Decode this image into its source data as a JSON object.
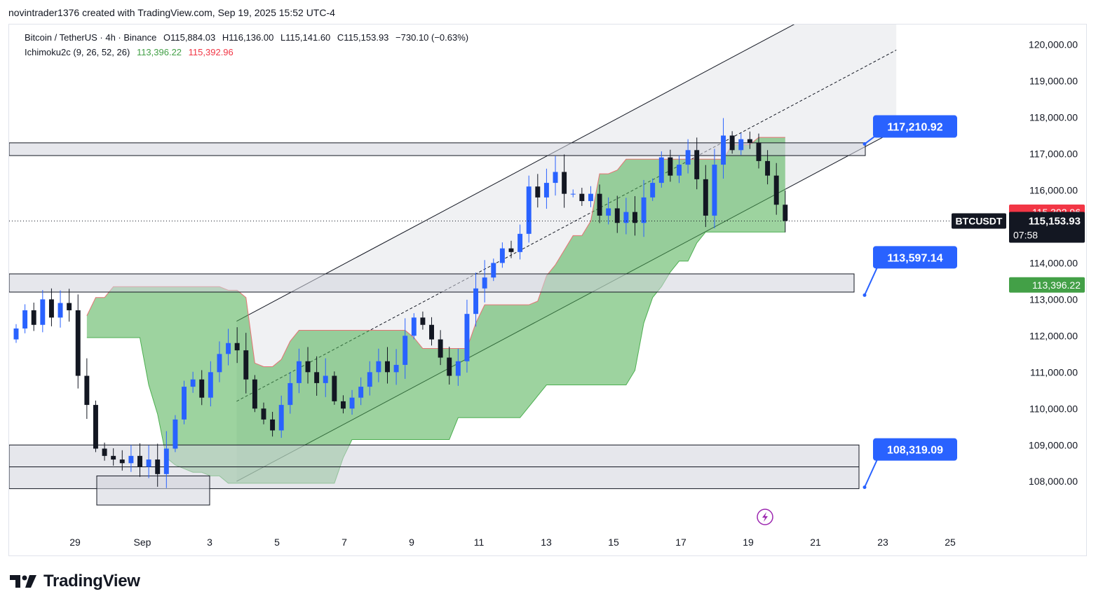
{
  "header": {
    "attribution": "novintrader1376 created with TradingView.com, Sep 19, 2025 15:52 UTC-4"
  },
  "legend": {
    "symbol": "Bitcoin / TetherUS · 4h · Binance",
    "open": "O115,884.03",
    "high": "H116,136.00",
    "low": "L115,141.60",
    "close": "C115,153.93",
    "change": "−730.10 (−0.63%)",
    "indicator": "Ichimoku2c (9, 26, 52, 26)",
    "ind_value1": "113,396.22",
    "ind_value2": "115,392.96"
  },
  "colors": {
    "up": "#2962ff",
    "down": "#131722",
    "cloud": "#4caf50",
    "cloud_edge": "#e57373",
    "label_blue": "#2962ff",
    "label_red": "#f23645",
    "label_green": "#43a047"
  },
  "chart_data": {
    "type": "candlestick",
    "title": "Bitcoin / TetherUS · 4h · Binance",
    "y_axis": {
      "ticks": [
        "120,000.00",
        "119,000.00",
        "118,000.00",
        "117,000.00",
        "116,000.00",
        "115,000.00",
        "114,000.00",
        "113,000.00",
        "112,000.00",
        "111,000.00",
        "110,000.00",
        "109,000.00",
        "108,000.00"
      ],
      "ylim": [
        107100,
        120300
      ]
    },
    "x_axis": {
      "ticks": [
        "29",
        "Sep",
        "3",
        "5",
        "7",
        "9",
        "11",
        "13",
        "15",
        "17",
        "19",
        "21",
        "23",
        "25"
      ]
    },
    "price_labels": {
      "current_symbol": "BTCUSDT",
      "current_price": "115,153.93",
      "countdown": "07:58",
      "ichimoku_upper": "115,392.96",
      "ichimoku_lower": "113,396.22"
    },
    "annotations": [
      {
        "text": "117,210.92",
        "value": 117210.92
      },
      {
        "text": "113,597.14",
        "value": 113597.14
      },
      {
        "text": "108,319.09",
        "value": 108319.09
      }
    ],
    "zones": [
      {
        "from_value": 116950,
        "to_value": 117300
      },
      {
        "from_value": 113200,
        "to_value": 113700
      },
      {
        "from_value": 107800,
        "to_value": 109000
      },
      {
        "from_value": 107350,
        "to_value": 108150
      }
    ],
    "close_path": [
      112200,
      112700,
      112300,
      113000,
      112500,
      112900,
      112700,
      110900,
      110100,
      108900,
      108700,
      108600,
      108500,
      108700,
      108400,
      108600,
      108200,
      108900,
      109700,
      110600,
      110800,
      110300,
      111000,
      111500,
      111800,
      111600,
      110800,
      110000,
      109700,
      109400,
      110100,
      110700,
      111300,
      111000,
      110700,
      110900,
      110200,
      110000,
      110300,
      110600,
      111000,
      111300,
      111000,
      111200,
      112000,
      112500,
      112300,
      111900,
      111400,
      110900,
      111300,
      112600,
      113300,
      113600,
      114000,
      114400,
      114300,
      114800,
      116100,
      115800,
      116200,
      116500,
      115900,
      115900,
      115700,
      115900,
      115300,
      115500,
      115100,
      115400,
      115100,
      115800,
      116200,
      116900,
      116400,
      116700,
      117100,
      116300,
      115300,
      116700,
      117500,
      117100,
      117400,
      117300,
      116800,
      116400,
      115600,
      115153.93
    ]
  },
  "footer": {
    "brand": "TradingView"
  }
}
